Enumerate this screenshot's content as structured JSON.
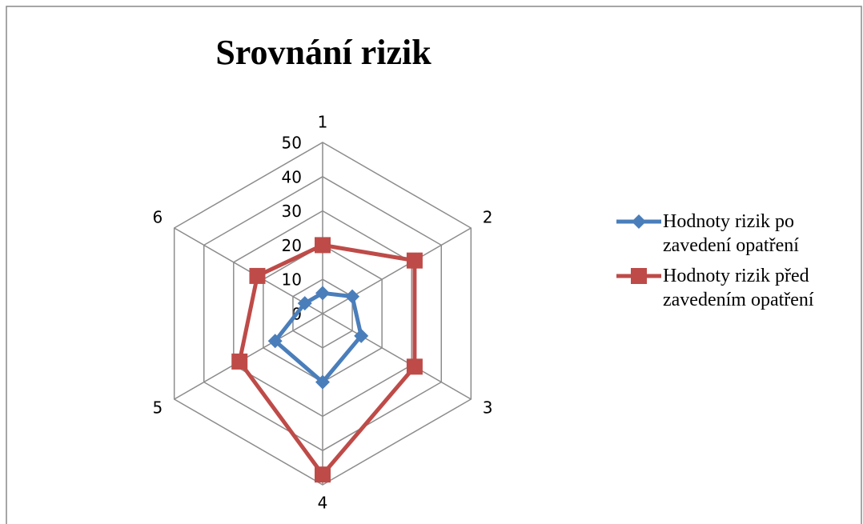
{
  "chart_data": {
    "type": "radar",
    "title": "Srovnání rizik",
    "categories": [
      "1",
      "2",
      "3",
      "4",
      "5",
      "6"
    ],
    "series": [
      {
        "name": "Hodnoty rizik po zavedení opatření",
        "color": "#4a7ebb",
        "marker": "diamond",
        "values": [
          6,
          10,
          13,
          20,
          16,
          6
        ]
      },
      {
        "name": "Hodnoty rizik před zavedením opatření",
        "color": "#be4b48",
        "marker": "square",
        "values": [
          20,
          31,
          31,
          47,
          28,
          22
        ]
      }
    ],
    "ylim": [
      0,
      50
    ],
    "yticks": [
      0,
      10,
      20,
      30,
      40,
      50
    ],
    "grid": true,
    "legend": "right"
  }
}
